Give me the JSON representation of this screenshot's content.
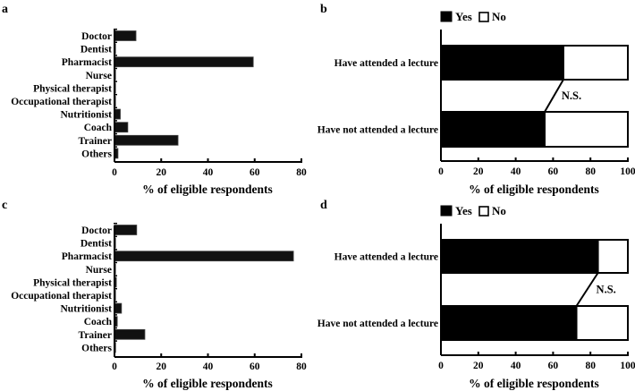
{
  "chart_data": [
    {
      "panel": "a",
      "type": "bar",
      "orientation": "horizontal",
      "categories": [
        "Doctor",
        "Dentist",
        "Pharmacist",
        "Nurse",
        "Physical therapist",
        "Occupational therapist",
        "Nutritionist",
        "Coach",
        "Trainer",
        "Others"
      ],
      "values": [
        9.2,
        0.4,
        59.4,
        0.4,
        0.4,
        0.4,
        2.5,
        5.7,
        27.2,
        1.5
      ],
      "xlabel": "% of eligible respondents",
      "ylabel": "",
      "xlim": [
        0,
        80
      ],
      "xticks": [
        0,
        20,
        40,
        60,
        80
      ],
      "grid": false
    },
    {
      "panel": "b",
      "type": "bar",
      "orientation": "horizontal",
      "stacked": true,
      "categories": [
        "Have attended a lecture",
        "Have not attended a lecture"
      ],
      "series": [
        {
          "name": "Yes",
          "values": [
            65.5,
            55.5
          ]
        },
        {
          "name": "No",
          "values": [
            34.5,
            44.5
          ]
        }
      ],
      "annotation": "N.S.",
      "xlabel": "% of eligible respondents",
      "xlim": [
        0,
        100
      ],
      "xticks": [
        0,
        20,
        40,
        60,
        80,
        100
      ],
      "legend": {
        "position": "top",
        "entries": [
          "Yes",
          "No"
        ]
      },
      "grid": false
    },
    {
      "panel": "c",
      "type": "bar",
      "orientation": "horizontal",
      "categories": [
        "Doctor",
        "Dentist",
        "Pharmacist",
        "Nurse",
        "Physical therapist",
        "Occupational therapist",
        "Nutritionist",
        "Coach",
        "Trainer",
        "Others"
      ],
      "values": [
        9.5,
        0.3,
        76.6,
        0.3,
        0.8,
        0.3,
        3.0,
        1.2,
        13.0,
        0.5
      ],
      "xlabel": "% of eligible respondents",
      "ylabel": "",
      "xlim": [
        0,
        80
      ],
      "xticks": [
        0,
        20,
        40,
        60,
        80
      ],
      "grid": false
    },
    {
      "panel": "d",
      "type": "bar",
      "orientation": "horizontal",
      "stacked": true,
      "categories": [
        "Have attended a lecture",
        "Have not attended a lecture"
      ],
      "series": [
        {
          "name": "Yes",
          "values": [
            84,
            72.5
          ]
        },
        {
          "name": "No",
          "values": [
            16,
            27.5
          ]
        }
      ],
      "annotation": "N.S.",
      "xlabel": "% of eligible respondents",
      "xlim": [
        0,
        100
      ],
      "xticks": [
        0,
        20,
        40,
        60,
        80,
        100
      ],
      "legend": {
        "position": "top",
        "entries": [
          "Yes",
          "No"
        ]
      },
      "grid": false
    }
  ],
  "panels": {
    "a": {
      "label": "a"
    },
    "b": {
      "label": "b"
    },
    "c": {
      "label": "c"
    },
    "d": {
      "label": "d"
    }
  },
  "colors": {
    "yes": "#000000",
    "no": "#ffffff",
    "bar": "#111111",
    "axis": "#000000"
  }
}
